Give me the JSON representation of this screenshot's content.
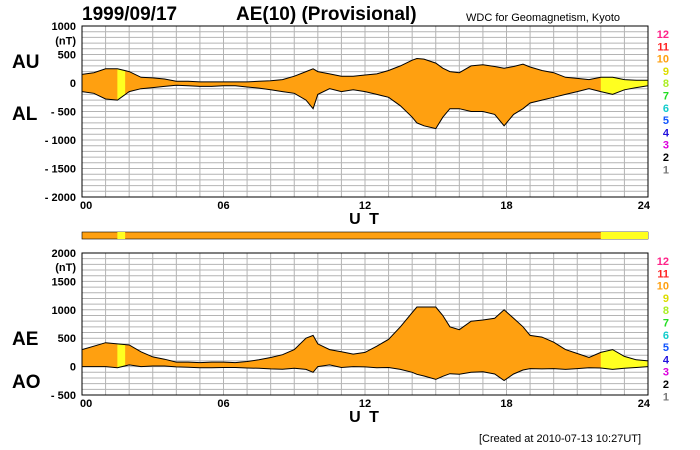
{
  "header": {
    "date": "1999/09/17",
    "title": "AE(10) (Provisional)",
    "source": "WDC for Geomagnetism, Kyoto"
  },
  "footer": {
    "created": "[Created at 2010-07-13 10:27UT]"
  },
  "colors": {
    "fill": "#ffa010",
    "highlight": "#ffff20",
    "grid": "#b4b4b4",
    "levels": [
      "#dddddd",
      "#777777",
      "#000000",
      "#dd00dd",
      "#2211dd",
      "#1155ff",
      "#11cccc",
      "#22dd22",
      "#aaee22",
      "#dddd00",
      "#ffa010",
      "#ff2222",
      "#ff2288"
    ]
  },
  "top_panel": {
    "series_labels": [
      "AU",
      "AL"
    ],
    "unit": "(nT)",
    "y_ticks": [
      "1000",
      "500",
      "0",
      "- 500",
      "- 1000",
      "- 1500",
      "- 2000"
    ],
    "x_ticks": [
      "00",
      "06",
      "12",
      "18",
      "24"
    ],
    "xlabel": "U T"
  },
  "bottom_panel": {
    "series_labels": [
      "AE",
      "AO"
    ],
    "unit": "(nT)",
    "y_ticks": [
      "2000",
      "1500",
      "1000",
      "500",
      "0",
      "- 500"
    ],
    "x_ticks": [
      "00",
      "06",
      "12",
      "18",
      "24"
    ],
    "xlabel": "U T"
  },
  "level_scale": [
    "12",
    "11",
    "10",
    "9",
    "8",
    "7",
    "6",
    "5",
    "4",
    "3",
    "2",
    "1"
  ],
  "chart_data": [
    {
      "type": "area",
      "name": "AU/AL",
      "xlabel": "U T",
      "ylabel": "(nT)",
      "xlim": [
        0,
        24
      ],
      "ylim": [
        -2000,
        1000
      ],
      "grid": true,
      "x": [
        0,
        0.5,
        1,
        1.5,
        2,
        2.5,
        3,
        3.5,
        4,
        4.5,
        5,
        5.5,
        6,
        6.5,
        7,
        7.5,
        8,
        8.5,
        9,
        9.5,
        9.8,
        10,
        10.5,
        11,
        11.5,
        12,
        12.5,
        13,
        13.5,
        14,
        14.2,
        14.5,
        15,
        15.3,
        15.6,
        16,
        16.5,
        17,
        17.5,
        17.9,
        18.3,
        18.7,
        19,
        19.5,
        20,
        20.5,
        21,
        21.5,
        22,
        22.5,
        23,
        23.5,
        24
      ],
      "series": [
        {
          "name": "AU",
          "values": [
            150,
            180,
            250,
            250,
            200,
            100,
            90,
            70,
            30,
            30,
            20,
            20,
            20,
            20,
            20,
            30,
            40,
            60,
            120,
            200,
            250,
            200,
            160,
            120,
            120,
            140,
            160,
            220,
            300,
            400,
            430,
            420,
            350,
            260,
            200,
            180,
            300,
            320,
            290,
            260,
            290,
            330,
            280,
            220,
            180,
            100,
            80,
            60,
            100,
            100,
            60,
            50,
            50
          ]
        },
        {
          "name": "AL",
          "values": [
            -150,
            -180,
            -280,
            -300,
            -150,
            -100,
            -80,
            -60,
            -40,
            -50,
            -60,
            -60,
            -50,
            -50,
            -70,
            -90,
            -120,
            -150,
            -180,
            -300,
            -450,
            -200,
            -100,
            -150,
            -120,
            -150,
            -200,
            -250,
            -400,
            -600,
            -700,
            -750,
            -800,
            -600,
            -450,
            -450,
            -500,
            -500,
            -550,
            -750,
            -550,
            -450,
            -350,
            -300,
            -250,
            -200,
            -150,
            -100,
            -150,
            -200,
            -120,
            -80,
            -50
          ]
        }
      ],
      "highlight_bands": [
        [
          1.5,
          1.83
        ],
        [
          22,
          24
        ]
      ]
    },
    {
      "type": "area",
      "name": "AE/AO",
      "xlabel": "U T",
      "ylabel": "(nT)",
      "xlim": [
        0,
        24
      ],
      "ylim": [
        -500,
        2000
      ],
      "grid": true,
      "x": [
        0,
        0.5,
        1,
        1.5,
        2,
        2.5,
        3,
        3.5,
        4,
        4.5,
        5,
        5.5,
        6,
        6.5,
        7,
        7.5,
        8,
        8.5,
        9,
        9.5,
        9.8,
        10,
        10.5,
        11,
        11.5,
        12,
        12.5,
        13,
        13.5,
        14,
        14.2,
        14.5,
        15,
        15.3,
        15.6,
        16,
        16.5,
        17,
        17.5,
        17.9,
        18.3,
        18.7,
        19,
        19.5,
        20,
        20.5,
        21,
        21.5,
        22,
        22.5,
        23,
        23.5,
        24
      ],
      "series": [
        {
          "name": "AE",
          "values": [
            300,
            360,
            420,
            400,
            380,
            260,
            170,
            130,
            80,
            80,
            70,
            80,
            80,
            70,
            90,
            120,
            160,
            210,
            300,
            500,
            550,
            400,
            300,
            260,
            220,
            250,
            360,
            480,
            700,
            950,
            1050,
            1050,
            1050,
            900,
            700,
            650,
            800,
            820,
            850,
            1000,
            850,
            700,
            550,
            520,
            430,
            300,
            230,
            160,
            250,
            300,
            180,
            120,
            100
          ]
        },
        {
          "name": "AO",
          "values": [
            0,
            0,
            0,
            -20,
            30,
            0,
            10,
            10,
            -5,
            -10,
            -20,
            -20,
            -15,
            -15,
            -25,
            -30,
            -40,
            -45,
            -30,
            -50,
            -100,
            0,
            30,
            -15,
            0,
            -5,
            -20,
            -15,
            -50,
            -100,
            -135,
            -165,
            -225,
            -170,
            -125,
            -135,
            -100,
            -90,
            -130,
            -245,
            -130,
            -60,
            -35,
            -40,
            -35,
            -50,
            -35,
            -20,
            -25,
            -50,
            -30,
            -15,
            0
          ]
        }
      ],
      "highlight_bands": [
        [
          1.5,
          1.83
        ],
        [
          22,
          24
        ]
      ]
    }
  ]
}
